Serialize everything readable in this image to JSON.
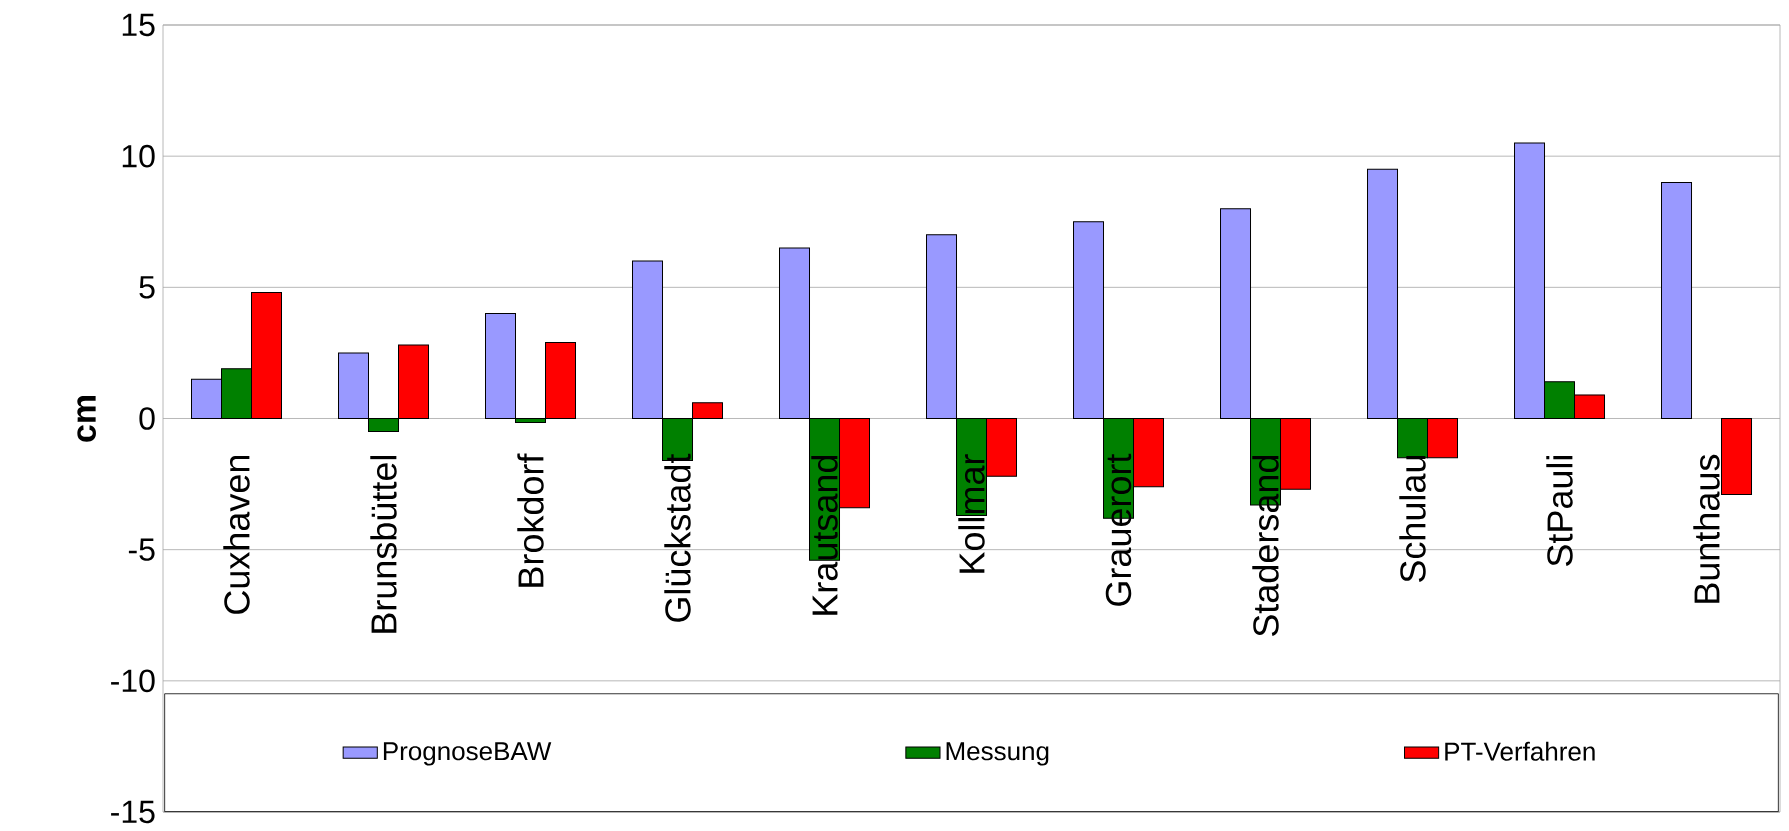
{
  "chart_data": {
    "type": "bar",
    "ylabel": "cm",
    "categories": [
      "Cuxhaven",
      "Brunsbüttel",
      "Brokdorf",
      "Glückstadt",
      "Krautsand",
      "Kollmar",
      "Grauerort",
      "Stadersand",
      "Schulau",
      "StPauli",
      "Bunthaus"
    ],
    "series": [
      {
        "name": "PrognoseBAW",
        "color": "#9999ff",
        "values": [
          1.5,
          2.5,
          4.0,
          6.0,
          6.5,
          7.0,
          7.5,
          8.0,
          9.5,
          10.5,
          9.0
        ]
      },
      {
        "name": "Messung",
        "color": "#008000",
        "values": [
          1.9,
          -0.5,
          -0.15,
          -1.6,
          -5.4,
          -3.7,
          -3.8,
          -3.3,
          -1.5,
          1.4,
          null
        ]
      },
      {
        "name": "PT-Verfahren",
        "color": "#ff0000",
        "values": [
          4.8,
          2.8,
          2.9,
          0.6,
          -3.4,
          -2.2,
          -2.6,
          -2.7,
          -1.5,
          0.9,
          -2.9
        ]
      }
    ],
    "ylim": [
      -15,
      15
    ],
    "yticks": [
      -15,
      -10,
      -5,
      0,
      5,
      10,
      15
    ],
    "grid": "y",
    "legend": "bottom"
  }
}
